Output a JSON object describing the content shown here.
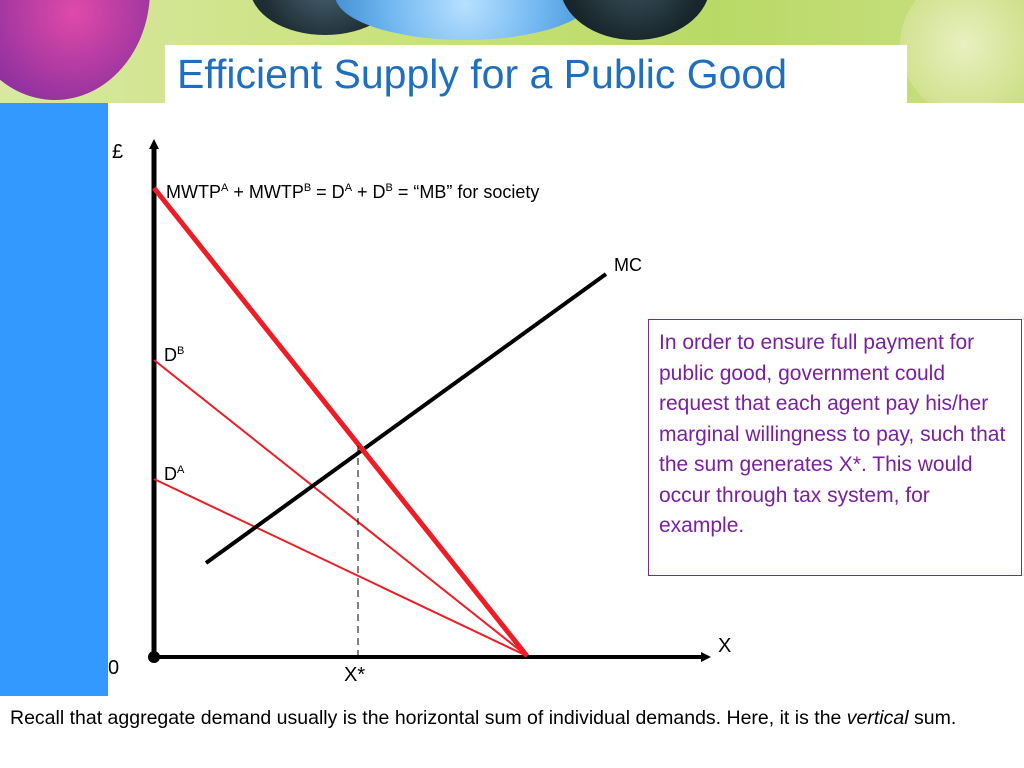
{
  "title": "Efficient Supply for a Public Good",
  "axis": {
    "y_symbol": "£",
    "x_symbol": "X",
    "origin": "0",
    "optimum": "X*"
  },
  "curves": {
    "social": {
      "base": "MWTP",
      "sup_a": "A",
      "plus1": " + MWTP",
      "sup_b": "B",
      "eq": " = D",
      "sup_a2": "A",
      "plus2": " + D",
      "sup_b2": "B",
      "tail": " = “MB” for society"
    },
    "mc": "MC",
    "d_b": {
      "base": "D",
      "sup": "B"
    },
    "d_a": {
      "base": "D",
      "sup": "A"
    }
  },
  "info_text": "In order to ensure full payment for public good, government could request that each agent pay his/her marginal willingness to pay, such that the sum generates X*.  This would occur through tax system, for example.",
  "footer": {
    "line1": "Recall that aggregate demand usually is the horizontal sum of individual demands.  Here, it is the ",
    "emph": "vertical",
    "end": " sum."
  },
  "colors": {
    "title": "#1f6fc0",
    "demand": "#ee1c24",
    "info_border": "#7b2c8f",
    "info_text": "#7b1fa2",
    "stripe": "#3399ff"
  }
}
